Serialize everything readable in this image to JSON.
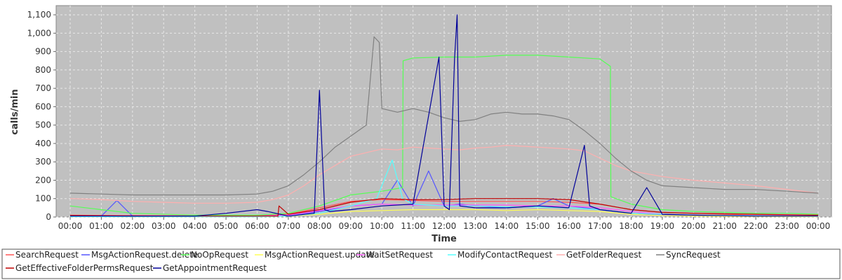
{
  "chart_data": {
    "type": "line",
    "title": "",
    "xlabel": "Time",
    "ylabel": "calls/min",
    "ylim": [
      0,
      1150
    ],
    "y_ticks": [
      0,
      100,
      200,
      300,
      400,
      500,
      600,
      700,
      800,
      900,
      1000,
      1100
    ],
    "y_tick_labels": [
      "0",
      "100",
      "200",
      "300",
      "400",
      "500",
      "600",
      "700",
      "800",
      "900",
      "1,000",
      "1,100"
    ],
    "x_ticks": [
      "00:00",
      "01:00",
      "02:00",
      "03:00",
      "04:00",
      "05:00",
      "06:00",
      "07:00",
      "08:00",
      "09:00",
      "10:00",
      "11:00",
      "12:00",
      "13:00",
      "14:00",
      "15:00",
      "16:00",
      "17:00",
      "18:00",
      "19:00",
      "20:00",
      "21:00",
      "22:00",
      "23:00",
      "00:00"
    ],
    "grid": true,
    "legend_position": "bottom",
    "background": "#c0c0c0",
    "series": [
      {
        "name": "SearchRequest",
        "color": "#ff5555",
        "x": [
          "00:00",
          "02:00",
          "04:00",
          "06:00",
          "07:00",
          "08:00",
          "09:00",
          "10:00",
          "11:00",
          "12:00",
          "13:00",
          "14:00",
          "15:00",
          "16:00",
          "17:00",
          "18:00",
          "19:00",
          "20:00",
          "21:00",
          "22:00",
          "23:00",
          "00:00"
        ],
        "values": [
          10,
          8,
          6,
          8,
          15,
          50,
          85,
          95,
          90,
          85,
          85,
          85,
          85,
          80,
          70,
          40,
          25,
          20,
          15,
          12,
          10,
          8
        ]
      },
      {
        "name": "MsgActionRequest.delete",
        "color": "#5555ff",
        "x": [
          "00:00",
          "01:00",
          "01:30",
          "02:00",
          "04:00",
          "06:00",
          "07:00",
          "08:00",
          "09:00",
          "10:00",
          "10:30",
          "11:00",
          "11:30",
          "12:00",
          "12:30",
          "13:00",
          "14:00",
          "15:00",
          "15:30",
          "16:00",
          "17:00",
          "18:00",
          "19:00",
          "20:00",
          "22:00",
          "00:00"
        ],
        "values": [
          5,
          5,
          90,
          5,
          5,
          5,
          10,
          30,
          60,
          70,
          200,
          60,
          250,
          60,
          70,
          60,
          50,
          60,
          100,
          60,
          40,
          20,
          10,
          10,
          5,
          5
        ]
      },
      {
        "name": "NoOpRequest",
        "color": "#55ff55",
        "x": [
          "00:00",
          "01:00",
          "02:00",
          "04:00",
          "06:00",
          "07:00",
          "08:00",
          "09:00",
          "10:00",
          "10:40",
          "10:41",
          "11:00",
          "12:00",
          "13:00",
          "14:00",
          "15:00",
          "16:00",
          "17:00",
          "17:20",
          "17:21",
          "18:00",
          "19:00",
          "20:00",
          "21:00",
          "22:00",
          "23:00",
          "00:00"
        ],
        "values": [
          60,
          40,
          20,
          10,
          10,
          20,
          60,
          120,
          140,
          160,
          850,
          865,
          870,
          870,
          880,
          880,
          870,
          860,
          820,
          110,
          70,
          40,
          30,
          25,
          20,
          20,
          15
        ]
      },
      {
        "name": "MsgActionRequest.update",
        "color": "#ffff55",
        "x": [
          "00:00",
          "02:00",
          "06:00",
          "07:00",
          "08:00",
          "09:00",
          "10:00",
          "11:00",
          "12:00",
          "13:00",
          "14:00",
          "15:00",
          "16:00",
          "17:00",
          "18:00",
          "19:00",
          "20:00",
          "22:00",
          "00:00"
        ],
        "values": [
          2,
          2,
          2,
          5,
          15,
          30,
          35,
          40,
          40,
          40,
          35,
          40,
          35,
          30,
          15,
          8,
          5,
          3,
          2
        ]
      },
      {
        "name": "WaitSetRequest",
        "color": "#ff55ff",
        "x": [
          "00:00",
          "02:00",
          "06:00",
          "07:00",
          "08:00",
          "09:00",
          "10:00",
          "11:00",
          "12:00",
          "13:00",
          "14:00",
          "15:00",
          "16:00",
          "17:00",
          "18:00",
          "19:00",
          "20:00",
          "22:00",
          "00:00"
        ],
        "values": [
          5,
          4,
          4,
          10,
          35,
          60,
          70,
          65,
          65,
          65,
          65,
          60,
          60,
          50,
          30,
          15,
          10,
          8,
          5
        ]
      },
      {
        "name": "ModifyContactRequest",
        "color": "#55ffff",
        "x": [
          "00:00",
          "06:00",
          "07:00",
          "08:00",
          "09:00",
          "09:50",
          "10:20",
          "10:40",
          "11:00",
          "12:00",
          "13:00",
          "14:00",
          "15:00",
          "16:00",
          "17:00",
          "18:00",
          "20:00",
          "00:00"
        ],
        "values": [
          2,
          2,
          5,
          20,
          60,
          100,
          310,
          100,
          70,
          60,
          60,
          55,
          55,
          50,
          40,
          20,
          10,
          5
        ]
      },
      {
        "name": "GetFolderRequest",
        "color": "#ffafaf",
        "x": [
          "00:00",
          "01:00",
          "02:00",
          "03:00",
          "04:00",
          "05:00",
          "06:00",
          "06:30",
          "07:00",
          "07:30",
          "08:00",
          "08:30",
          "09:00",
          "09:30",
          "10:00",
          "10:30",
          "11:00",
          "11:30",
          "12:00",
          "12:30",
          "13:00",
          "13:30",
          "14:00",
          "14:30",
          "15:00",
          "15:30",
          "16:00",
          "16:30",
          "17:00",
          "17:30",
          "18:00",
          "19:00",
          "20:00",
          "21:00",
          "22:00",
          "23:00",
          "00:00"
        ],
        "values": [
          100,
          95,
          85,
          80,
          75,
          75,
          80,
          95,
          120,
          170,
          230,
          280,
          330,
          350,
          370,
          365,
          380,
          375,
          370,
          365,
          375,
          380,
          390,
          385,
          380,
          375,
          370,
          360,
          320,
          280,
          250,
          220,
          200,
          185,
          170,
          150,
          130
        ]
      },
      {
        "name": "SyncRequest",
        "color": "#808080",
        "x": [
          "00:00",
          "01:00",
          "02:00",
          "03:00",
          "04:00",
          "05:00",
          "06:00",
          "06:30",
          "07:00",
          "07:30",
          "08:00",
          "08:30",
          "09:00",
          "09:30",
          "09:45",
          "09:55",
          "10:00",
          "10:30",
          "11:00",
          "11:30",
          "12:00",
          "12:30",
          "13:00",
          "13:30",
          "14:00",
          "14:30",
          "15:00",
          "15:30",
          "16:00",
          "16:30",
          "17:00",
          "17:30",
          "18:00",
          "18:30",
          "19:00",
          "20:00",
          "21:00",
          "22:00",
          "23:00",
          "00:00"
        ],
        "values": [
          130,
          125,
          120,
          120,
          120,
          120,
          125,
          140,
          170,
          230,
          300,
          380,
          440,
          500,
          980,
          950,
          590,
          570,
          590,
          570,
          540,
          520,
          530,
          560,
          570,
          560,
          560,
          550,
          530,
          470,
          400,
          320,
          250,
          200,
          170,
          160,
          150,
          150,
          140,
          130
        ]
      },
      {
        "name": "GetEffectiveFolderPermsRequest",
        "color": "#c00000",
        "x": [
          "00:00",
          "02:00",
          "06:00",
          "06:40",
          "06:42",
          "07:00",
          "08:00",
          "09:00",
          "10:00",
          "11:00",
          "12:00",
          "13:00",
          "14:00",
          "15:00",
          "16:00",
          "17:00",
          "18:00",
          "19:00",
          "20:00",
          "22:00",
          "00:00"
        ],
        "values": [
          8,
          5,
          5,
          5,
          60,
          15,
          40,
          80,
          100,
          95,
          95,
          100,
          100,
          100,
          95,
          70,
          40,
          25,
          20,
          15,
          10
        ]
      },
      {
        "name": "GetAppointmentRequest",
        "color": "#000099",
        "x": [
          "00:00",
          "02:00",
          "04:00",
          "05:00",
          "06:00",
          "06:20",
          "07:00",
          "07:50",
          "08:00",
          "08:10",
          "08:20",
          "09:00",
          "10:00",
          "11:00",
          "11:50",
          "12:00",
          "12:10",
          "12:20",
          "12:25",
          "12:30",
          "13:00",
          "14:00",
          "15:00",
          "16:00",
          "16:30",
          "16:40",
          "17:00",
          "18:00",
          "18:30",
          "19:00",
          "20:00",
          "22:00",
          "00:00"
        ],
        "values": [
          5,
          5,
          5,
          20,
          40,
          30,
          5,
          20,
          690,
          40,
          30,
          40,
          60,
          70,
          870,
          60,
          40,
          860,
          1100,
          60,
          50,
          50,
          60,
          50,
          390,
          60,
          40,
          20,
          160,
          15,
          10,
          5,
          5
        ]
      }
    ]
  }
}
